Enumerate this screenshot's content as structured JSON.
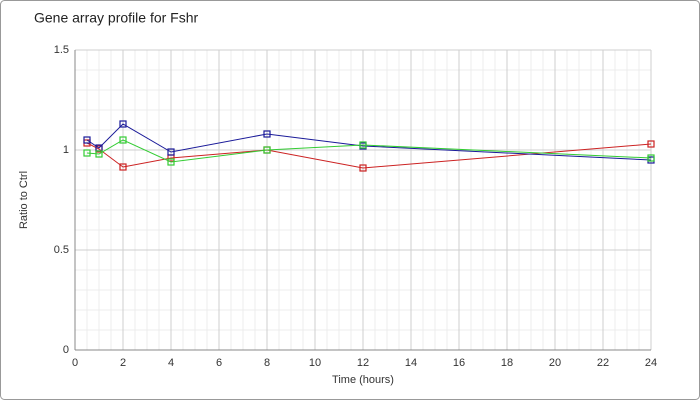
{
  "chart_data": {
    "type": "line",
    "title": "Gene array profile for Fshr",
    "x_label": "Time (hours)",
    "y_label": "Ratio to Ctrl",
    "x": [
      0.5,
      1,
      2,
      4,
      8,
      12,
      24
    ],
    "series": [
      {
        "color": "#cc2222",
        "values": [
          1.035,
          1.005,
          0.915,
          0.96,
          1.0,
          0.91,
          1.03
        ]
      },
      {
        "color": "#1a1a99",
        "values": [
          1.05,
          1.01,
          1.13,
          0.99,
          1.08,
          1.02,
          0.95
        ]
      },
      {
        "color": "#33cc33",
        "values": [
          0.985,
          0.98,
          1.05,
          0.94,
          1.0,
          1.025,
          0.96
        ]
      }
    ],
    "xlim": [
      0,
      24
    ],
    "xticks": [
      0,
      2,
      4,
      6,
      8,
      10,
      12,
      14,
      16,
      18,
      20,
      22,
      24
    ],
    "ylim": [
      0,
      1.5
    ],
    "yticks": [
      0,
      0.5,
      1,
      1.5
    ],
    "grid": true
  }
}
